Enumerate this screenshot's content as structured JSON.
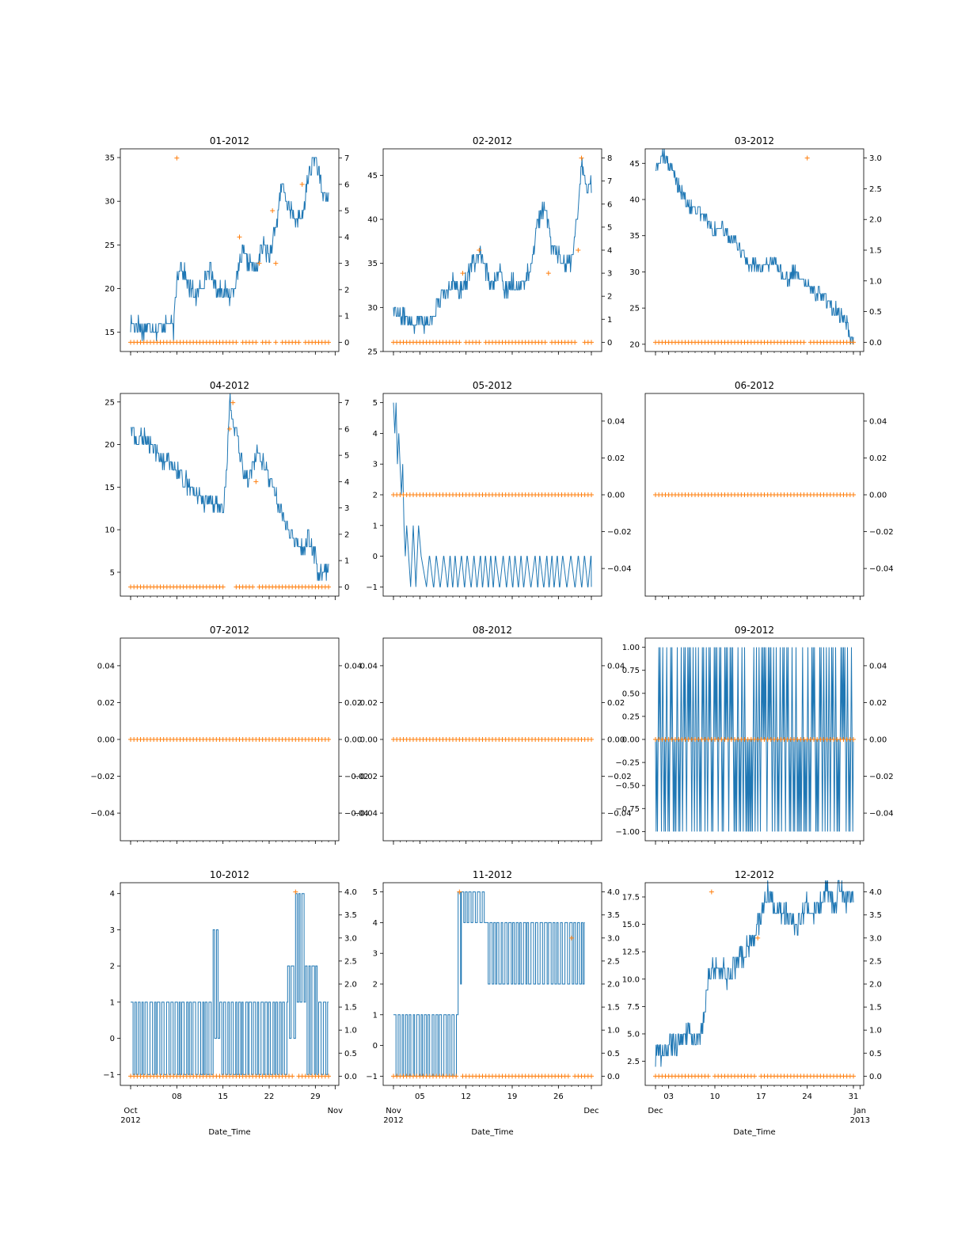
{
  "figure": {
    "xlabel": "Date_Time",
    "x_axis_groups": [
      {
        "column": 0,
        "start": "2012-10-01",
        "end": "2012-11-01",
        "ticks": [
          {
            "date": "2012-10-01",
            "label": "Oct\n2012",
            "major": true
          },
          {
            "date": "2012-10-08",
            "label": "08",
            "major": false
          },
          {
            "date": "2012-10-15",
            "label": "15",
            "major": false
          },
          {
            "date": "2012-10-22",
            "label": "22",
            "major": false
          },
          {
            "date": "2012-10-29",
            "label": "29",
            "major": false
          },
          {
            "date": "2012-11-01",
            "label": "Nov",
            "major": true
          }
        ]
      },
      {
        "column": 1,
        "start": "2012-11-01",
        "end": "2012-12-01",
        "ticks": [
          {
            "date": "2012-11-01",
            "label": "Nov\n2012",
            "major": true
          },
          {
            "date": "2012-11-05",
            "label": "05",
            "major": false
          },
          {
            "date": "2012-11-12",
            "label": "12",
            "major": false
          },
          {
            "date": "2012-11-19",
            "label": "19",
            "major": false
          },
          {
            "date": "2012-11-26",
            "label": "26",
            "major": false
          },
          {
            "date": "2012-12-01",
            "label": "Dec",
            "major": true
          }
        ]
      },
      {
        "column": 2,
        "start": "2012-12-01",
        "end": "2013-01-01",
        "ticks": [
          {
            "date": "2012-12-01",
            "label": "Dec",
            "major": true
          },
          {
            "date": "2012-12-03",
            "label": "03",
            "major": false
          },
          {
            "date": "2012-12-10",
            "label": "10",
            "major": false
          },
          {
            "date": "2012-12-17",
            "label": "17",
            "major": false
          },
          {
            "date": "2012-12-24",
            "label": "24",
            "major": false
          },
          {
            "date": "2012-12-31",
            "label": "31",
            "major": false
          },
          {
            "date": "2013-01-01",
            "label": "Jan\n2013",
            "major": true
          }
        ]
      }
    ],
    "colors": {
      "line": "#1f77b4",
      "marker": "#ff7f0e"
    }
  },
  "chart_data": [
    {
      "type": "line",
      "title": "01-2012",
      "left_ylim": [
        12.8,
        36.0
      ],
      "right_ylim": [
        -0.35,
        7.35
      ],
      "left_ticks": [
        15,
        20,
        25,
        30,
        35
      ],
      "left_tick_labels": [
        "15",
        "20",
        "25",
        "30",
        "35"
      ],
      "right_ticks": [
        0,
        1,
        2,
        3,
        4,
        5,
        6,
        7
      ],
      "right_tick_labels": [
        "0",
        "1",
        "2",
        "3",
        "4",
        "5",
        "6",
        "7"
      ],
      "line_kind": "walk",
      "line_x": [
        1,
        2,
        3,
        4,
        5,
        6,
        7,
        7.5,
        8,
        8.5,
        9,
        10,
        11,
        12,
        13,
        14,
        15,
        16,
        17,
        18,
        19,
        20,
        21,
        22,
        23,
        24,
        25,
        26,
        27,
        28,
        29,
        30,
        31
      ],
      "line_y": [
        16,
        16,
        15,
        16,
        15,
        16,
        16,
        15,
        21,
        23,
        22,
        20,
        19,
        21,
        22,
        20,
        20,
        19,
        21,
        24,
        23,
        22,
        25,
        24,
        27,
        32,
        29,
        28,
        28,
        33,
        35,
        31,
        30
      ],
      "line_var": 1.0,
      "markers": [
        {
          "day": 8,
          "value": 7
        },
        {
          "day": 17.5,
          "value": 4
        },
        {
          "day": 20.5,
          "value": 3
        },
        {
          "day": 22.5,
          "value": 5
        },
        {
          "day": 23,
          "value": 3
        },
        {
          "day": 27,
          "value": 6
        }
      ],
      "marker_gaps": [
        [
          17.3,
          17.8
        ],
        [
          20.3,
          20.7
        ],
        [
          22.3,
          22.7
        ],
        [
          23.3,
          23.7
        ],
        [
          26.8,
          27.2
        ]
      ]
    },
    {
      "type": "line",
      "title": "02-2012",
      "left_ylim": [
        25.0,
        48.0
      ],
      "right_ylim": [
        -0.4,
        8.4
      ],
      "left_ticks": [
        25,
        30,
        35,
        40,
        45
      ],
      "left_tick_labels": [
        "25",
        "30",
        "35",
        "40",
        "45"
      ],
      "right_ticks": [
        0,
        1,
        2,
        3,
        4,
        5,
        6,
        7,
        8
      ],
      "right_tick_labels": [
        "0",
        "1",
        "2",
        "3",
        "4",
        "5",
        "6",
        "7",
        "8"
      ],
      "line_kind": "walk",
      "line_x": [
        1,
        2,
        3,
        4,
        5,
        6,
        7,
        8,
        9,
        10,
        11,
        12,
        13,
        14,
        15,
        16,
        17,
        18,
        19,
        20,
        21,
        22,
        23,
        24,
        25,
        26,
        27,
        28,
        29,
        29.5,
        30
      ],
      "line_y": [
        30,
        29,
        29,
        28,
        29,
        28,
        29,
        31,
        32,
        33,
        32,
        33,
        35,
        36,
        34,
        33,
        34,
        32,
        33,
        32,
        33,
        35,
        40,
        41,
        37,
        36,
        35,
        35,
        41,
        47,
        44
      ],
      "line_var": 1.0,
      "markers": [
        {
          "day": 11.5,
          "value": 3
        },
        {
          "day": 14,
          "value": 4
        },
        {
          "day": 24.5,
          "value": 3
        },
        {
          "day": 29,
          "value": 4
        },
        {
          "day": 29.5,
          "value": 8
        }
      ],
      "marker_gaps": [
        [
          11.3,
          11.7
        ],
        [
          14.2,
          14.6
        ],
        [
          24.3,
          24.7
        ],
        [
          28.8,
          29.8
        ]
      ]
    },
    {
      "type": "line",
      "title": "03-2012",
      "left_ylim": [
        19.0,
        47.0
      ],
      "right_ylim": [
        -0.15,
        3.15
      ],
      "left_ticks": [
        20,
        25,
        30,
        35,
        40,
        45
      ],
      "left_tick_labels": [
        "20",
        "25",
        "30",
        "35",
        "40",
        "45"
      ],
      "right_ticks": [
        0,
        0.5,
        1,
        1.5,
        2,
        2.5,
        3
      ],
      "right_tick_labels": [
        "0.0",
        "0.5",
        "1.0",
        "1.5",
        "2.0",
        "2.5",
        "3.0"
      ],
      "line_kind": "walk",
      "line_x": [
        1,
        2,
        3,
        4,
        5,
        6,
        7,
        8,
        9,
        10,
        11,
        12,
        13,
        14,
        15,
        16,
        17,
        18,
        19,
        20,
        21,
        22,
        23,
        24,
        25,
        26,
        27,
        28,
        29,
        30,
        30.5,
        31
      ],
      "line_y": [
        44,
        46,
        45,
        43,
        41,
        39,
        39,
        38,
        37,
        36,
        36,
        35,
        34,
        33,
        31,
        31,
        30,
        31,
        32,
        30,
        29,
        30,
        29,
        28,
        27,
        27,
        26,
        25,
        24,
        23,
        20,
        21
      ],
      "line_var": 1.0,
      "markers": [
        {
          "day": 24,
          "value": 3
        }
      ],
      "marker_gaps": [
        [
          23.8,
          24.2
        ]
      ]
    },
    {
      "type": "line",
      "title": "04-2012",
      "left_ylim": [
        2.2,
        26.0
      ],
      "right_ylim": [
        -0.35,
        7.35
      ],
      "left_ticks": [
        5,
        10,
        15,
        20,
        25
      ],
      "left_tick_labels": [
        "5",
        "10",
        "15",
        "20",
        "25"
      ],
      "right_ticks": [
        0,
        1,
        2,
        3,
        4,
        5,
        6,
        7
      ],
      "right_tick_labels": [
        "0",
        "1",
        "2",
        "3",
        "4",
        "5",
        "6",
        "7"
      ],
      "line_kind": "walk",
      "line_x": [
        1,
        2,
        3,
        4,
        5,
        6,
        7,
        8,
        9,
        10,
        11,
        12,
        13,
        14,
        15,
        15.5,
        16,
        17,
        18,
        19,
        20,
        21,
        22,
        23,
        24,
        25,
        26,
        27,
        28,
        29,
        29.5,
        30
      ],
      "line_y": [
        22,
        20,
        21,
        20,
        19,
        18,
        18,
        17,
        16,
        15,
        14,
        13,
        13,
        13,
        12,
        16,
        25,
        21,
        17,
        16,
        19,
        18,
        16,
        14,
        12,
        10,
        9,
        8,
        9,
        7,
        4,
        5
      ],
      "line_var": 1.0,
      "markers": [
        {
          "day": 16,
          "value": 6
        },
        {
          "day": 16.5,
          "value": 7
        },
        {
          "day": 20,
          "value": 4
        }
      ],
      "marker_gaps": [
        [
          15.5,
          16.8
        ],
        [
          19.8,
          20.2
        ]
      ]
    },
    {
      "type": "line",
      "title": "05-2012",
      "left_ylim": [
        -1.3,
        5.3
      ],
      "right_ylim": [
        -0.055,
        0.055
      ],
      "left_ticks": [
        -1,
        0,
        1,
        2,
        3,
        4,
        5
      ],
      "left_tick_labels": [
        "−1",
        "0",
        "1",
        "2",
        "3",
        "4",
        "5"
      ],
      "right_ticks": [
        -0.04,
        -0.02,
        0,
        0.02,
        0.04
      ],
      "right_tick_labels": [
        "−0.04",
        "−0.02",
        "0.00",
        "0.02",
        "0.04"
      ],
      "line_kind": "osc_decay",
      "line_x": [
        1,
        1.2,
        1.4,
        1.6,
        1.8,
        2.0,
        2.2,
        2.4,
        2.6,
        2.8,
        3.0,
        3.3,
        3.6,
        4.0,
        4.4,
        4.8,
        5.2,
        6.0
      ],
      "line_y": [
        5,
        4,
        5,
        3,
        4,
        3,
        2,
        3,
        1,
        0,
        1,
        0,
        -1,
        1,
        -1,
        1,
        0,
        -1
      ],
      "osc_levels": [
        -1,
        0
      ],
      "markers_all_zero": true,
      "marker_value": 0
    },
    {
      "type": "line",
      "title": "06-2012",
      "left_ylim": null,
      "right_ylim": [
        -0.055,
        0.055
      ],
      "left_ticks": [],
      "left_tick_labels": [],
      "right_ticks": [
        -0.04,
        -0.02,
        0,
        0.02,
        0.04
      ],
      "right_tick_labels": [
        "−0.04",
        "−0.02",
        "0.00",
        "0.02",
        "0.04"
      ],
      "line_kind": "none",
      "markers_all_zero": true,
      "marker_value": 0
    },
    {
      "type": "line",
      "title": "07-2012",
      "left_ylim": [
        -0.055,
        0.055
      ],
      "right_ylim": [
        -0.055,
        0.055
      ],
      "left_ticks": [
        -0.04,
        -0.02,
        0,
        0.02,
        0.04
      ],
      "left_tick_labels": [
        "−0.04",
        "−0.02",
        "0.00",
        "0.02",
        "0.04"
      ],
      "right_ticks": [
        -0.04,
        -0.02,
        0,
        0.02,
        0.04
      ],
      "right_tick_labels": [
        "−0.04",
        "−0.02",
        "0.00",
        "0.02",
        "0.04"
      ],
      "line_kind": "none",
      "markers_all_zero": true,
      "marker_value": 0
    },
    {
      "type": "line",
      "title": "08-2012",
      "left_ylim": [
        -0.055,
        0.055
      ],
      "right_ylim": [
        -0.055,
        0.055
      ],
      "left_ticks": [
        -0.04,
        -0.02,
        0,
        0.02,
        0.04
      ],
      "left_tick_labels": [
        "−0.04",
        "−0.02",
        "0.00",
        "0.02",
        "0.04"
      ],
      "right_ticks": [
        -0.04,
        -0.02,
        0,
        0.02,
        0.04
      ],
      "right_tick_labels": [
        "−0.04",
        "−0.02",
        "0.00",
        "0.02",
        "0.04"
      ],
      "line_kind": "none",
      "markers_all_zero": true,
      "marker_value": 0
    },
    {
      "type": "line",
      "title": "09-2012",
      "left_ylim": [
        -1.1,
        1.1
      ],
      "right_ylim": [
        -0.055,
        0.055
      ],
      "left_ticks": [
        -1,
        -0.75,
        -0.5,
        -0.25,
        0,
        0.25,
        0.5,
        0.75,
        1
      ],
      "left_tick_labels": [
        "−1.00",
        "−0.75",
        "−0.50",
        "−0.25",
        "0.00",
        "0.25",
        "0.50",
        "0.75",
        "1.00"
      ],
      "right_ticks": [
        -0.04,
        -0.02,
        0,
        0.02,
        0.04
      ],
      "right_tick_labels": [
        "−0.04",
        "−0.02",
        "0.00",
        "0.02",
        "0.04"
      ],
      "line_kind": "osc_full",
      "osc_levels": [
        -1,
        1
      ],
      "markers_all_zero": true,
      "marker_value": 0
    },
    {
      "type": "line",
      "title": "10-2012",
      "left_ylim": [
        -1.3,
        4.3
      ],
      "right_ylim": [
        -0.2,
        4.2
      ],
      "left_ticks": [
        -1,
        0,
        1,
        2,
        3,
        4
      ],
      "left_tick_labels": [
        "−1",
        "0",
        "1",
        "2",
        "3",
        "4"
      ],
      "right_ticks": [
        0,
        0.5,
        1,
        1.5,
        2,
        2.5,
        3,
        3.5,
        4
      ],
      "right_tick_labels": [
        "0.0",
        "0.5",
        "1.0",
        "1.5",
        "2.0",
        "2.5",
        "3.0",
        "3.5",
        "4.0"
      ],
      "line_kind": "osc_segments",
      "segments": [
        {
          "from": 1,
          "to": 13.5,
          "levels": [
            -1,
            1
          ]
        },
        {
          "from": 13.5,
          "to": 14.5,
          "levels": [
            0,
            3
          ]
        },
        {
          "from": 14.5,
          "to": 24.8,
          "levels": [
            -1,
            1
          ]
        },
        {
          "from": 24.8,
          "to": 26,
          "levels": [
            0,
            2
          ]
        },
        {
          "from": 26,
          "to": 27.5,
          "levels": [
            1,
            4
          ]
        },
        {
          "from": 27.5,
          "to": 29.5,
          "levels": [
            -1,
            2
          ]
        },
        {
          "from": 29.5,
          "to": 31,
          "levels": [
            -1,
            1
          ]
        }
      ],
      "markers": [
        {
          "day": 26,
          "value": 4
        }
      ],
      "marker_gaps": [
        [
          25.8,
          26.2
        ]
      ]
    },
    {
      "type": "line",
      "title": "11-2012",
      "left_ylim": [
        -1.3,
        5.3
      ],
      "right_ylim": [
        -0.2,
        4.2
      ],
      "left_ticks": [
        -1,
        0,
        1,
        2,
        3,
        4,
        5
      ],
      "left_tick_labels": [
        "−1",
        "0",
        "1",
        "2",
        "3",
        "4",
        "5"
      ],
      "right_ticks": [
        0,
        0.5,
        1,
        1.5,
        2,
        2.5,
        3,
        3.5,
        4
      ],
      "right_tick_labels": [
        "0.0",
        "0.5",
        "1.0",
        "1.5",
        "2.0",
        "2.5",
        "3.0",
        "3.5",
        "4.0"
      ],
      "line_kind": "osc_segments",
      "segments": [
        {
          "from": 1,
          "to": 10.8,
          "levels": [
            -1,
            1
          ]
        },
        {
          "from": 10.8,
          "to": 11.3,
          "levels": [
            2,
            5
          ]
        },
        {
          "from": 11.3,
          "to": 15,
          "levels": [
            4,
            5
          ]
        },
        {
          "from": 15,
          "to": 30,
          "levels": [
            2,
            4
          ]
        }
      ],
      "markers": [
        {
          "day": 11,
          "value": 4
        },
        {
          "day": 28,
          "value": 3
        }
      ],
      "marker_gaps": [
        [
          10.8,
          11.2
        ],
        [
          27.8,
          28.3
        ]
      ]
    },
    {
      "type": "line",
      "title": "12-2012",
      "left_ylim": [
        0.3,
        18.8
      ],
      "right_ylim": [
        -0.2,
        4.2
      ],
      "left_ticks": [
        2.5,
        5,
        7.5,
        10,
        12.5,
        15,
        17.5
      ],
      "left_tick_labels": [
        "2.5",
        "5.0",
        "7.5",
        "10.0",
        "12.5",
        "15.0",
        "17.5"
      ],
      "right_ticks": [
        0,
        0.5,
        1,
        1.5,
        2,
        2.5,
        3,
        3.5,
        4
      ],
      "right_tick_labels": [
        "0.0",
        "0.5",
        "1.0",
        "1.5",
        "2.0",
        "2.5",
        "3.0",
        "3.5",
        "4.0"
      ],
      "line_kind": "walk",
      "line_x": [
        1,
        2,
        3,
        4,
        5,
        6,
        7,
        8,
        9,
        10,
        11,
        12,
        13,
        14,
        15,
        16,
        17,
        18,
        19,
        20,
        21,
        22,
        23,
        24,
        25,
        26,
        27,
        28,
        29,
        30,
        31
      ],
      "line_y": [
        3,
        3,
        4,
        4,
        5,
        5,
        4,
        5,
        10,
        11,
        11,
        10,
        11,
        12,
        13,
        14,
        16,
        18,
        17,
        16,
        16,
        15,
        15,
        17,
        16,
        17,
        18,
        17,
        18,
        17,
        18
      ],
      "line_var": 1.0,
      "markers": [
        {
          "day": 9.5,
          "value": 4
        },
        {
          "day": 16.5,
          "value": 3
        }
      ],
      "marker_gaps": [
        [
          9.3,
          9.8
        ],
        [
          16.3,
          16.8
        ]
      ]
    }
  ]
}
